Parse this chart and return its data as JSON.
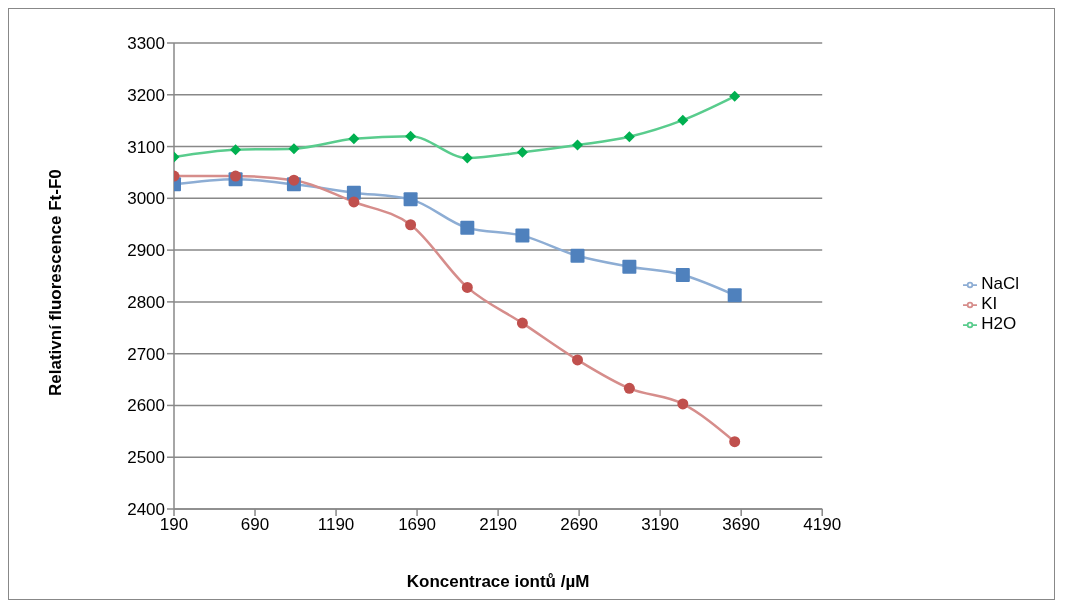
{
  "chart_data": {
    "type": "line",
    "xlabel": "Koncentrace iontů /µM",
    "ylabel": "Relativní fluorescence Ft-F0",
    "x": [
      190,
      570,
      930,
      1300,
      1650,
      2000,
      2340,
      2680,
      3000,
      3330,
      3650
    ],
    "series": [
      {
        "name": "NaCl",
        "color": "#4f81bd",
        "marker": "square",
        "values": [
          3027,
          3037,
          3027,
          3011,
          2998,
          2943,
          2928,
          2889,
          2868,
          2852,
          2813
        ]
      },
      {
        "name": "KI",
        "color": "#c0504d",
        "marker": "circle",
        "values": [
          3043,
          3043,
          3035,
          2993,
          2949,
          2828,
          2759,
          2688,
          2633,
          2603,
          2530
        ]
      },
      {
        "name": "H2O",
        "color": "#00b050",
        "marker": "diamond",
        "values": [
          3080,
          3094,
          3096,
          3115,
          3120,
          3078,
          3089,
          3103,
          3119,
          3151,
          3197
        ]
      }
    ],
    "xlim": [
      190,
      4190
    ],
    "xticks": [
      190,
      690,
      1190,
      1690,
      2190,
      2690,
      3190,
      3690,
      4190
    ],
    "ylim": [
      2400,
      3300
    ],
    "yticks": [
      2400,
      2500,
      2600,
      2700,
      2800,
      2900,
      3000,
      3100,
      3200,
      3300
    ],
    "grid": "y",
    "legend": "right",
    "line_style": "solid"
  }
}
